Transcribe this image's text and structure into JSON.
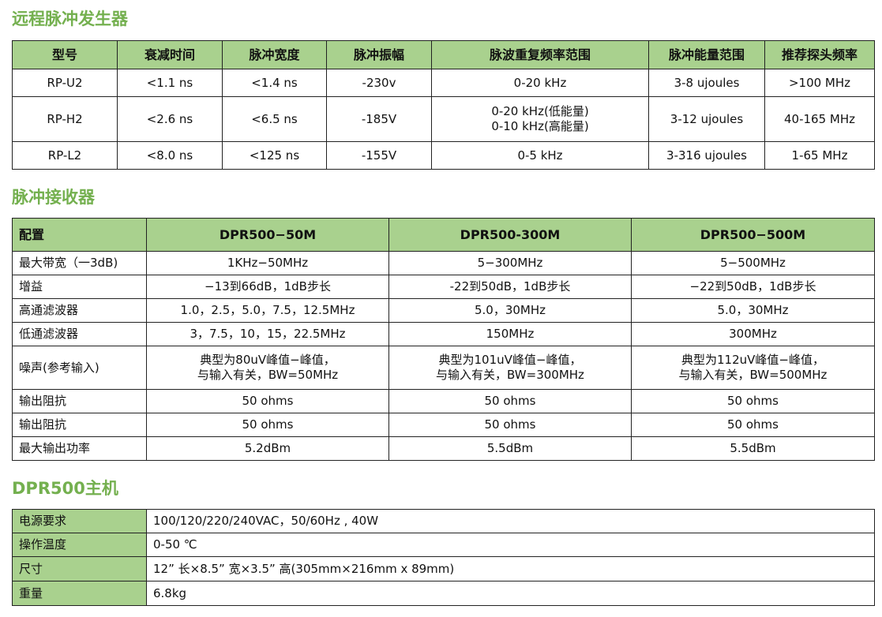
{
  "sections": [
    {
      "title": "远程脉冲发生器"
    },
    {
      "title": "脉冲接收器"
    },
    {
      "title": "DPR500主机"
    }
  ],
  "pulser": {
    "headers": [
      "型号",
      "衰减时间",
      "脉冲宽度",
      "脉冲振幅",
      "脉波重复频率范围",
      "脉冲能量范围",
      "推荐探头频率"
    ],
    "rows": [
      [
        "RP-U2",
        "<1.1 ns",
        "<1.4 ns",
        "-230v",
        "0-20 kHz",
        "3-8 ujoules",
        ">100 MHz"
      ],
      [
        "RP-H2",
        "<2.6 ns",
        "<6.5 ns",
        "-185V",
        "0-20 kHz(低能量)\n0-10 kHz(高能量)",
        "3-12 ujoules",
        "40-165 MHz"
      ],
      [
        "RP-L2",
        "<8.0 ns",
        "<125 ns",
        "-155V",
        "0-5 kHz",
        "3-316 ujoules",
        "1-65 MHz"
      ]
    ]
  },
  "receiver": {
    "headers": [
      "配置",
      "DPR500−50M",
      "DPR500-300M",
      "DPR500−500M"
    ],
    "rows": [
      [
        "最大带宽（一3dB)",
        "1KHz−50MHz",
        "5−300MHz",
        "5−500MHz"
      ],
      [
        "增益",
        "−13到66dB，1dB步长",
        "-22到50dB，1dB步长",
        "−22到50dB，1dB步长"
      ],
      [
        "高通滤波器",
        "1.0，2.5，5.0，7.5，12.5MHz",
        "5.0，30MHz",
        "5.0，30MHz"
      ],
      [
        "低通滤波器",
        "3，7.5，10，15，22.5MHz",
        "150MHz",
        "300MHz"
      ],
      [
        "噪声(参考输入)",
        "典型为80uV峰值−峰值，\n与输入有关，BW=50MHz",
        "典型为101uV峰值−峰值，\n与输入有关，BW=300MHz",
        "典型为112uV峰值−峰值，\n与输入有关，BW=500MHz"
      ],
      [
        "输出阻抗",
        "50 ohms",
        "50 ohms",
        "50 ohms"
      ],
      [
        "输出阻抗",
        "50 ohms",
        "50 ohms",
        "50 ohms"
      ],
      [
        "最大输出功率",
        "5.2dBm",
        "5.5dBm",
        "5.5dBm"
      ]
    ]
  },
  "host": {
    "rows": [
      [
        "电源要求",
        "100/120/220/240VAC，50/60Hz , 40W"
      ],
      [
        "操作温度",
        "0-50 ℃"
      ],
      [
        "尺寸",
        "12” 长×8.5” 宽×3.5” 高(305mm×216mm x 89mm)"
      ],
      [
        "重量",
        "6.8kg"
      ]
    ]
  }
}
